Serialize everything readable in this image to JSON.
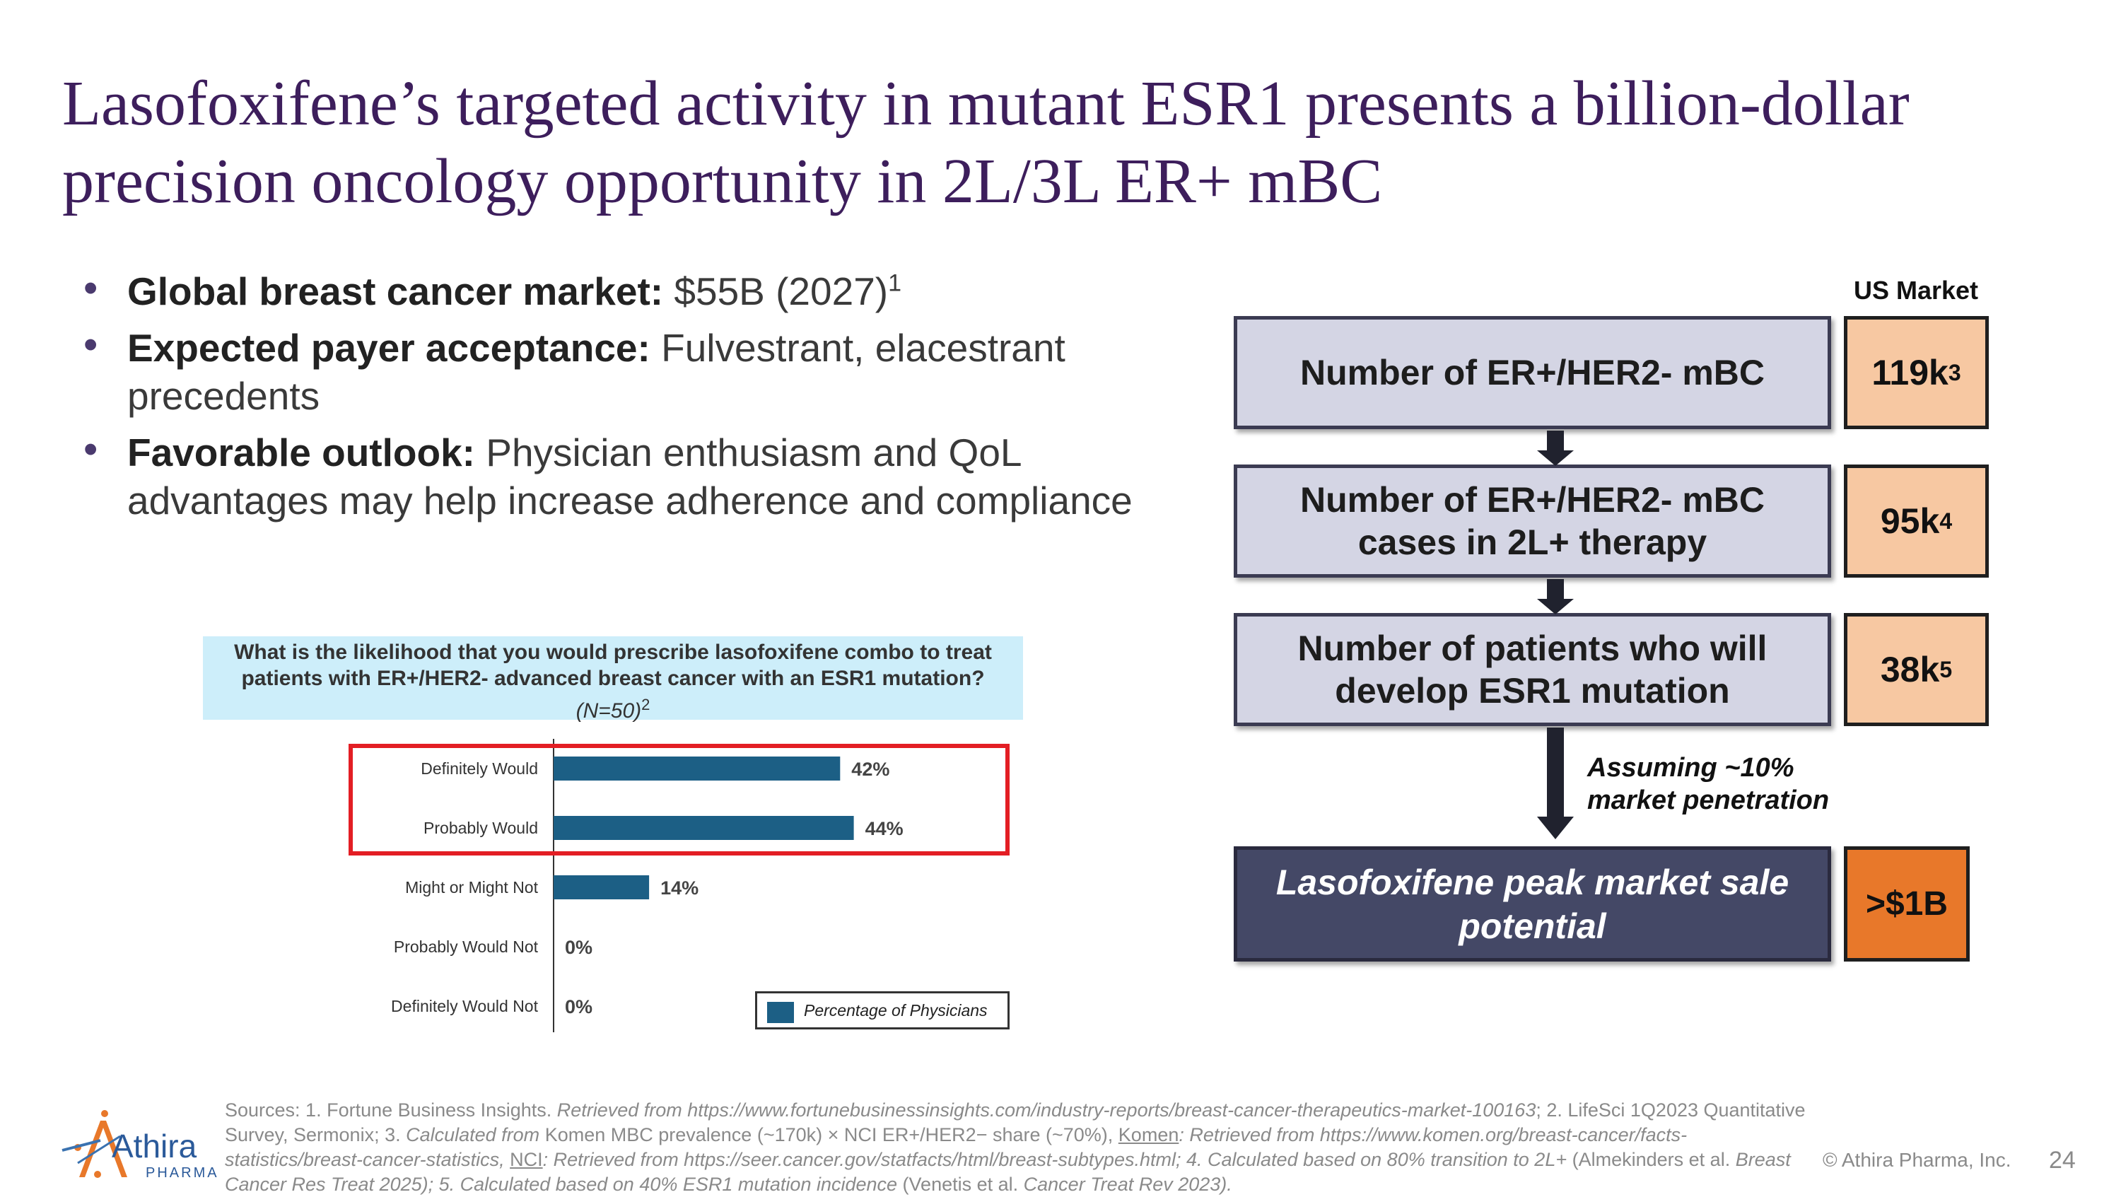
{
  "title": {
    "line1": "Lasofoxifene’s targeted activity in mutant ESR1 presents a billion-dollar",
    "line2": "precision oncology opportunity in 2L/3L ER+ mBC"
  },
  "bullets": [
    {
      "label": "Global breast cancer market:",
      "text": " $55B (2027)",
      "sup": "1"
    },
    {
      "label": "Expected payer acceptance:",
      "text": " Fulvestrant, elacestrant precedents",
      "sup": ""
    },
    {
      "label": "Favorable outlook:",
      "text": " Physician enthusiasm and QoL advantages may help increase adherence and compliance",
      "sup": ""
    }
  ],
  "survey": {
    "question": "What is the likelihood that you would prescribe lasofoxifene combo to treat patients with ER+/HER2- advanced breast cancer with an ESR1 mutation?",
    "n_label": "(N=50)",
    "n_sup": "2",
    "legend": "Percentage of Physicians"
  },
  "chart_data": {
    "type": "bar",
    "orientation": "horizontal",
    "categories": [
      "Definitely Would",
      "Probably Would",
      "Might or Might Not",
      "Probably Would Not",
      "Definitely Would Not"
    ],
    "values": [
      42,
      44,
      14,
      0,
      0
    ],
    "value_labels": [
      "42%",
      "44%",
      "14%",
      "0%",
      "0%"
    ],
    "series": [
      {
        "name": "Percentage of Physicians",
        "values": [
          42,
          44,
          14,
          0,
          0
        ]
      }
    ],
    "xlim": [
      0,
      100
    ],
    "color": "#1c5f85",
    "highlighted_categories": [
      "Definitely Would",
      "Probably Would"
    ],
    "highlight_color": "#e31e24"
  },
  "funnel": {
    "us_market_label": "US Market",
    "steps": [
      {
        "label": "Number of ER+/HER2- mBC",
        "value": "119k",
        "sup": "3"
      },
      {
        "label": "Number of ER+/HER2- mBC cases in 2L+ therapy",
        "value": "95k",
        "sup": "4"
      },
      {
        "label": "Number of patients who will develop ESR1 mutation",
        "value": "38k",
        "sup": "5"
      }
    ],
    "assumption_line1": "Assuming ~10%",
    "assumption_line2": "market penetration",
    "final_label": "Lasofoxifene peak market sale potential",
    "final_value": ">$1B"
  },
  "colors": {
    "title": "#3d1e5c",
    "funnel_box": "#d4d5e4",
    "value_box": "#f7c8a2",
    "final_box": "#444866",
    "final_value": "#e8782a",
    "bar": "#1c5f85",
    "survey_header": "#cdeefa"
  },
  "logo": {
    "name": "Athira",
    "sub": "PHARMA"
  },
  "footer": {
    "copyright": "© Athira Pharma, Inc.",
    "page": "24",
    "sources": {
      "s1": "Sources: 1. Fortune Business Insights. ",
      "s2": "Retrieved from https://www.fortunebusinessinsights.com/industry-reports/breast-cancer-therapeutics-market-100163",
      "s3": "; 2. LifeSci 1Q2023 Quantitative Survey, Sermonix; 3. ",
      "s4": "Calculated from",
      "s5": " Komen MBC prevalence (~170k) × NCI ER+/HER2− share (~70%), ",
      "s6": "Komen",
      "s7": ": Retrieved from https://www.komen.org/breast-cancer/facts-statistics/breast-cancer-statistics, ",
      "s8": "NCI",
      "s9": ": Retrieved from https://seer.cancer.gov/statfacts/html/breast-subtypes.html",
      "s10": "; 4. Calculated based on 80% transition to 2L+",
      "s11": " (Almekinders et al. ",
      "s12": "Breast Cancer Res Treat 2025); 5. Calculated based on 40% ESR1 mutation incidence",
      "s13": " (Venetis et al. ",
      "s14": "Cancer Treat Rev 2023)."
    }
  }
}
